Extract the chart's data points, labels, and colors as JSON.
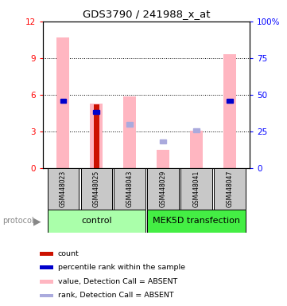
{
  "title": "GDS3790 / 241988_x_at",
  "samples": [
    "GSM448023",
    "GSM448025",
    "GSM448043",
    "GSM448029",
    "GSM448041",
    "GSM448047"
  ],
  "group_labels": [
    "control",
    "MEK5D transfection"
  ],
  "ylim_left": [
    0,
    12
  ],
  "ylim_right": [
    0,
    100
  ],
  "yticks_left": [
    0,
    3,
    6,
    9,
    12
  ],
  "yticks_right": [
    0,
    25,
    50,
    75,
    100
  ],
  "pink_bars": [
    10.7,
    5.3,
    5.9,
    1.5,
    3.1,
    9.3
  ],
  "red_bars": [
    0,
    5.2,
    0,
    0,
    0,
    0
  ],
  "blue_dark_vals": [
    5.5,
    4.6,
    0,
    0,
    0,
    5.5
  ],
  "blue_light_vals": [
    0,
    0,
    3.6,
    2.2,
    3.1,
    0
  ],
  "pink_color": "#FFB6C1",
  "red_color": "#CC1100",
  "blue_dark_color": "#0000CC",
  "blue_light_color": "#AAAADD",
  "gray_bg": "#C8C8C8",
  "control_color": "#AAFFAA",
  "mek5d_color": "#44EE44",
  "legend_items": [
    {
      "color": "#CC1100",
      "label": "count"
    },
    {
      "color": "#0000CC",
      "label": "percentile rank within the sample"
    },
    {
      "color": "#FFB6C1",
      "label": "value, Detection Call = ABSENT"
    },
    {
      "color": "#AAAADD",
      "label": "rank, Detection Call = ABSENT"
    }
  ]
}
